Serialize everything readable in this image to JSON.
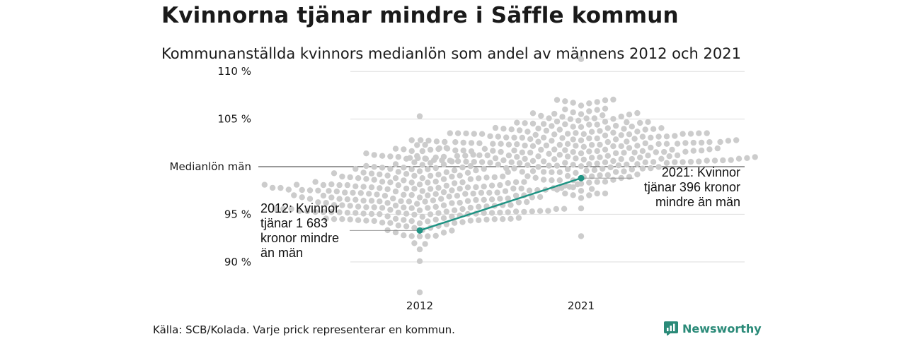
{
  "title": "Kvinnorna tjänar mindre i Säffle kommun",
  "subtitle": "Kommunanställda kvinnors medianlön som andel av männens 2012 och 2021",
  "source": "Källa: SCB/Kolada. Varje prick representerar en kommun.",
  "brand": {
    "name": "Newsworthy",
    "icon": "newsworthy-logo-icon"
  },
  "colors": {
    "dots": "#cccccc",
    "highlight": "#1f9484",
    "grid": "#dddddd",
    "reference": "#333333"
  },
  "chart_data": {
    "type": "scatter",
    "title": "Kvinnorna tjänar mindre i Säffle kommun",
    "subtitle": "Kommunanställda kvinnors medianlön som andel av männens 2012 och 2021",
    "categories": [
      "2012",
      "2021"
    ],
    "y_ticks": [
      {
        "value": 90,
        "label": "90 %"
      },
      {
        "value": 95,
        "label": "95 %"
      },
      {
        "value": 100,
        "label": "Medianlön män"
      },
      {
        "value": 105,
        "label": "105 %"
      },
      {
        "value": 110,
        "label": "110 %"
      }
    ],
    "ylim": [
      86.5,
      111.5
    ],
    "reference_line": {
      "value": 100,
      "label": "Medianlön män"
    },
    "distribution": [
      {
        "category": "2012",
        "n": 290,
        "median": 96.9,
        "spread": 2.4,
        "min": 86.8,
        "max": 105.3
      },
      {
        "category": "2021",
        "n": 290,
        "median": 101.9,
        "spread": 2.3,
        "min": 92.7,
        "max": 111.3
      }
    ],
    "highlight": {
      "name": "Säffle",
      "points": [
        {
          "x": "2012",
          "y": 93.3
        },
        {
          "x": "2021",
          "y": 98.8
        }
      ]
    },
    "annotations": [
      {
        "x": "2012",
        "lines": [
          "2012: Kvinnor",
          "tjänar 1 683",
          "kronor mindre",
          "än män"
        ]
      },
      {
        "x": "2021",
        "lines": [
          "2021: Kvinnor",
          "tjänar 396 kronor",
          "mindre än män"
        ]
      }
    ],
    "grid": true,
    "legend": "none"
  }
}
